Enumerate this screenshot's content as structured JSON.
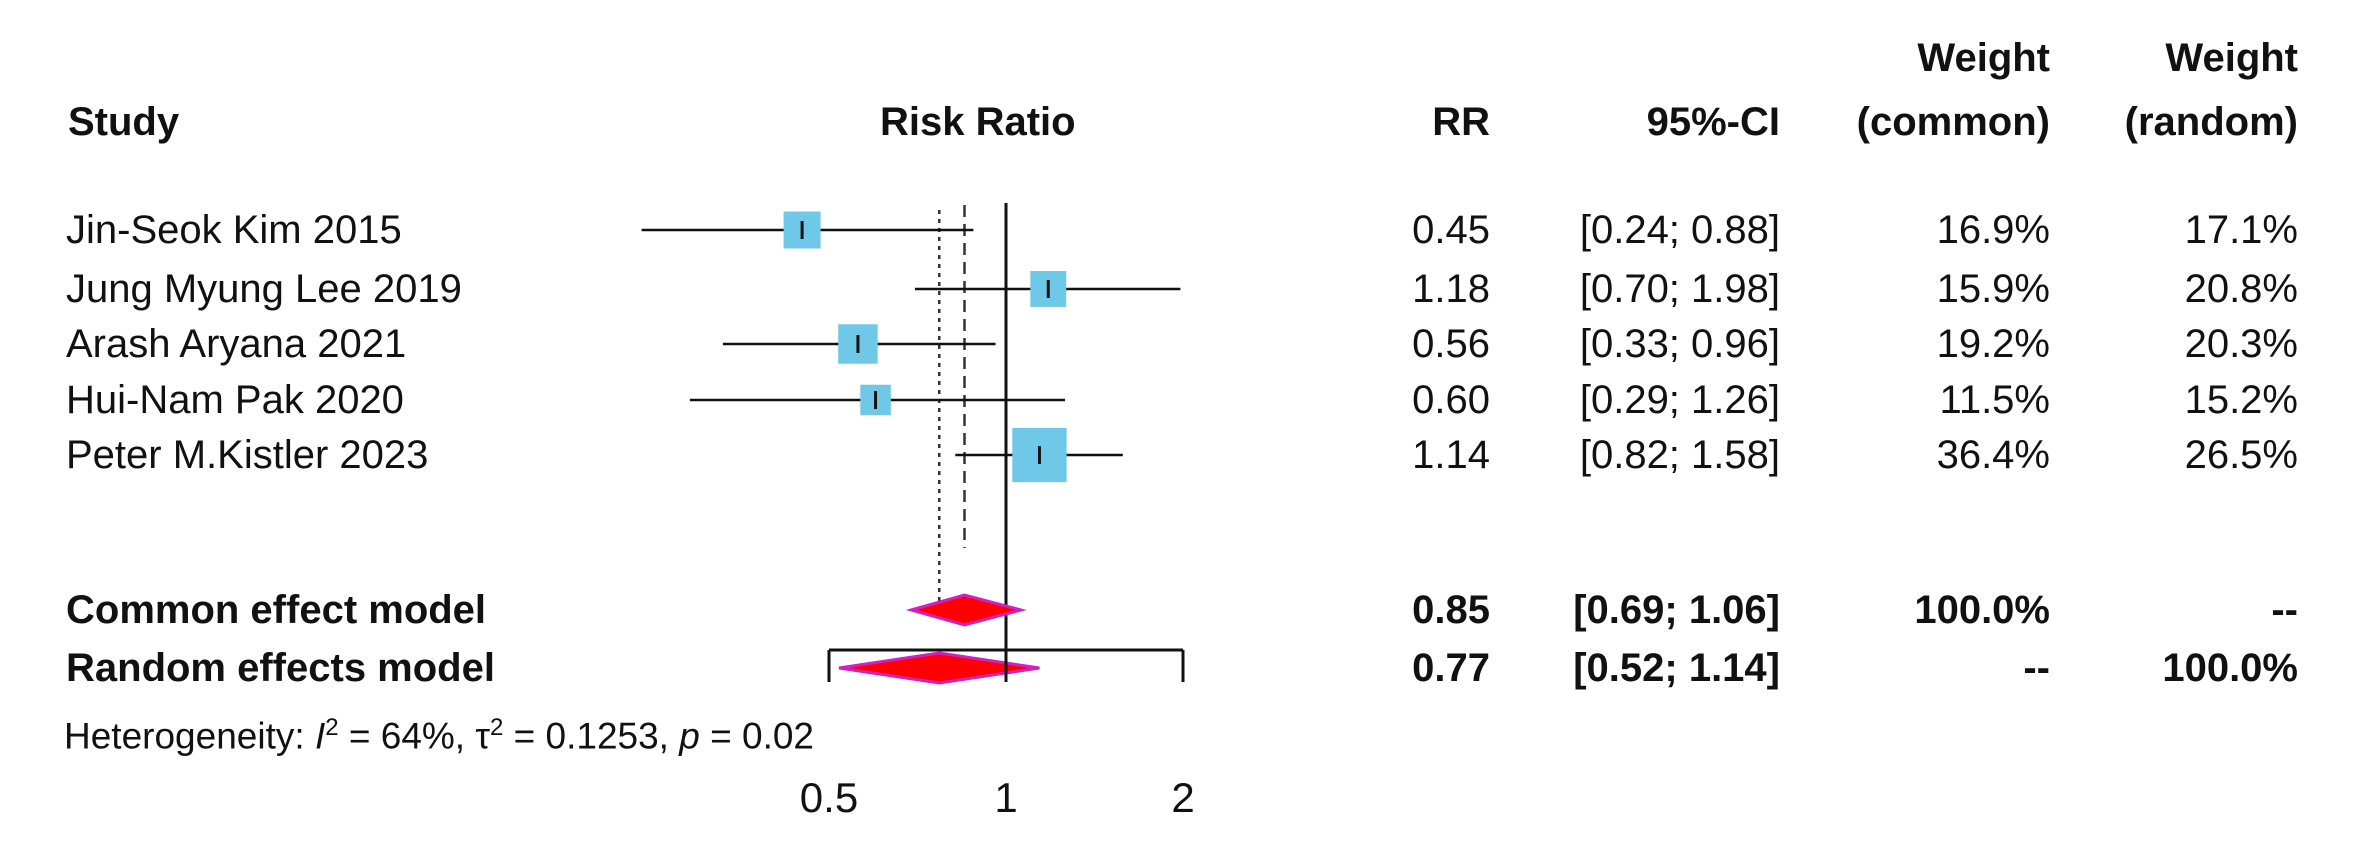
{
  "chart_data": {
    "type": "forest",
    "xscale": "log",
    "xlim": [
      0.5,
      2
    ],
    "xticks": [
      "0.5",
      "1",
      "2"
    ],
    "headers": {
      "study": "Study",
      "plot": "Risk Ratio",
      "rr": "RR",
      "ci": "95%-CI",
      "w_common": [
        "Weight",
        "(common)"
      ],
      "w_random": [
        "Weight",
        "(random)"
      ]
    },
    "studies": [
      {
        "name": "Jin-Seok Kim 2015",
        "rr": 0.45,
        "lo": 0.24,
        "hi": 0.88,
        "rr_text": "0.45",
        "ci_text": "[0.24; 0.88]",
        "w_common": "16.9%",
        "w_random": "17.1%",
        "wc": 16.9
      },
      {
        "name": "Jung Myung Lee 2019",
        "rr": 1.18,
        "lo": 0.7,
        "hi": 1.98,
        "rr_text": "1.18",
        "ci_text": "[0.70; 1.98]",
        "w_common": "15.9%",
        "w_random": "20.8%",
        "wc": 15.9
      },
      {
        "name": "Arash Aryana 2021",
        "rr": 0.56,
        "lo": 0.33,
        "hi": 0.96,
        "rr_text": "0.56",
        "ci_text": "[0.33; 0.96]",
        "w_common": "19.2%",
        "w_random": "20.3%",
        "wc": 19.2
      },
      {
        "name": "Hui-Nam Pak  2020",
        "rr": 0.6,
        "lo": 0.29,
        "hi": 1.26,
        "rr_text": "0.60",
        "ci_text": "[0.29; 1.26]",
        "w_common": "11.5%",
        "w_random": "15.2%",
        "wc": 11.5
      },
      {
        "name": "Peter M.Kistler 2023",
        "rr": 1.14,
        "lo": 0.82,
        "hi": 1.58,
        "rr_text": "1.14",
        "ci_text": "[0.82; 1.58]",
        "w_common": "36.4%",
        "w_random": "26.5%",
        "wc": 36.4
      }
    ],
    "pooled": [
      {
        "name": "Common effect model",
        "rr": 0.85,
        "lo": 0.69,
        "hi": 1.06,
        "rr_text": "0.85",
        "ci_text": "[0.69; 1.06]",
        "w_common": "100.0%",
        "w_random": "--"
      },
      {
        "name": "Random effects model",
        "rr": 0.77,
        "lo": 0.52,
        "hi": 1.14,
        "rr_text": "0.77",
        "ci_text": "[0.52; 1.14]",
        "w_common": "--",
        "w_random": "100.0%"
      }
    ],
    "heterogeneity": {
      "prefix": "Heterogeneity: ",
      "i2_label": "I",
      "i2_value": " = 64%, ",
      "tau_label": "τ",
      "tau_value": " = 0.1253, ",
      "p_label": "p",
      "p_value": " = 0.02"
    },
    "colors": {
      "square": "#6fc8e8",
      "diamond": "#ff0000",
      "diamond_edge": "#d020c0",
      "line": "#111111"
    }
  }
}
